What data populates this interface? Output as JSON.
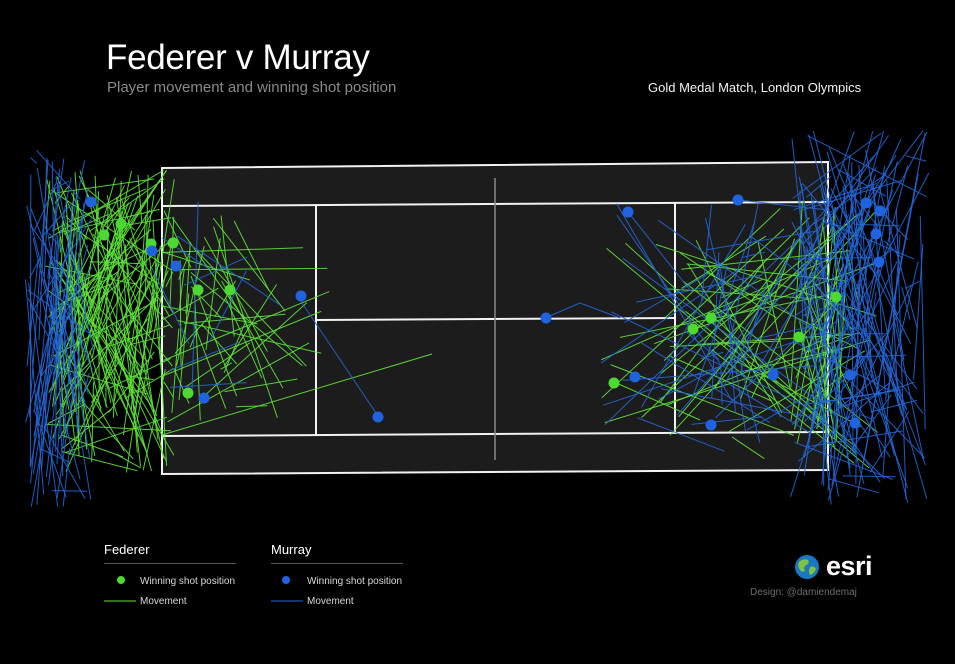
{
  "header": {
    "title": "Federer v Murray",
    "subtitle": "Player movement and winning shot position",
    "match": "Gold Medal Match, London Olympics"
  },
  "colors": {
    "background": "#000000",
    "court": "#1c1c1c",
    "court_lines": "#f2f2f2",
    "federer": "#4cd932",
    "federer_line": "#5ee33a",
    "murray": "#1f63e0",
    "murray_line": "#2466d6"
  },
  "legend": {
    "federer": {
      "name": "Federer",
      "shot_label": "Winning shot position",
      "move_label": "Movement"
    },
    "murray": {
      "name": "Murray",
      "shot_label": "Winning shot position",
      "move_label": "Movement"
    }
  },
  "branding": {
    "logo_icon": "globe-icon",
    "logo_text": "esri",
    "credit": "Design: @damiendemaj"
  }
}
